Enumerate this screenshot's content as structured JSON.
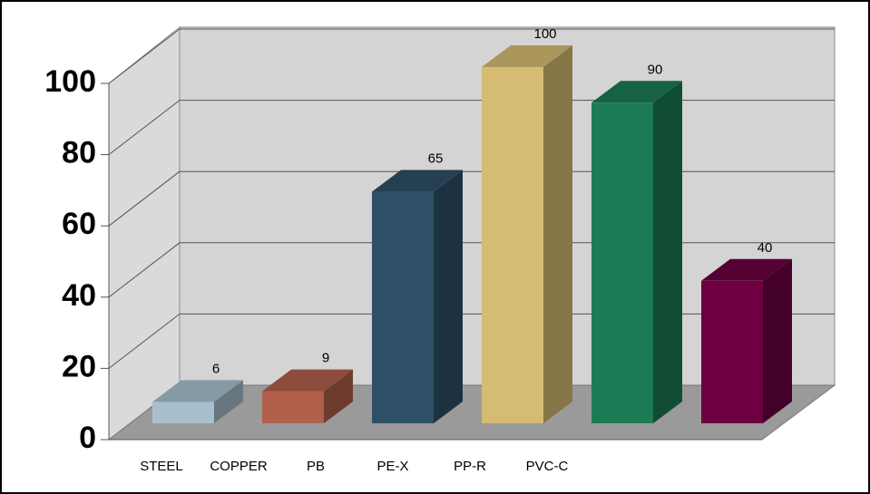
{
  "chart_data": {
    "type": "bar3d",
    "categories": [
      "STEEL",
      "COPPER",
      "PB",
      "PE-X",
      "PP-R",
      "PVC-C"
    ],
    "values": [
      6,
      9,
      65,
      100,
      90,
      40
    ],
    "colors": [
      "#a8c0cd",
      "#b1604b",
      "#2d5067",
      "#d6bc72",
      "#1c7a55",
      "#6c0041"
    ],
    "ylim": [
      0,
      100
    ],
    "yticks": [
      0,
      20,
      40,
      60,
      80,
      100
    ],
    "grid": true
  }
}
